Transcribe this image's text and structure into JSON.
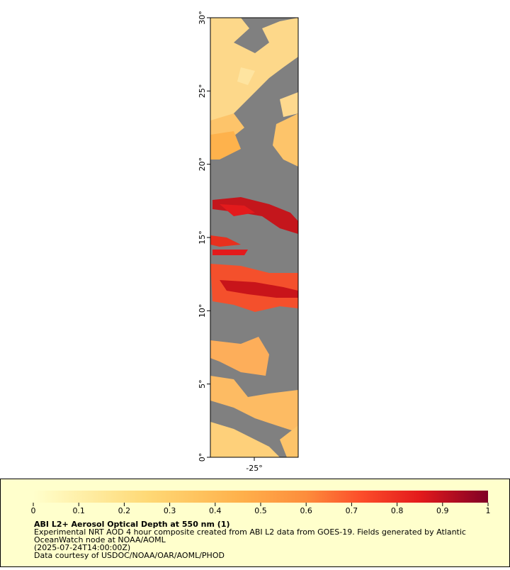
{
  "map": {
    "xlim": [
      -28,
      -22
    ],
    "ylim": [
      0,
      30
    ],
    "xticks": [
      {
        "value": -25,
        "label": "-25°"
      }
    ],
    "yticks": [
      {
        "value": 0,
        "label": "0°"
      },
      {
        "value": 5,
        "label": "5°"
      },
      {
        "value": 10,
        "label": "10°"
      },
      {
        "value": 15,
        "label": "15°"
      },
      {
        "value": 20,
        "label": "20°"
      },
      {
        "value": 25,
        "label": "25°"
      },
      {
        "value": 30,
        "label": "30°"
      }
    ]
  },
  "legend": {
    "clim": [
      0,
      1
    ],
    "colorbar_ticks": [
      0,
      0.1,
      0.2,
      0.3,
      0.4,
      0.5,
      0.6,
      0.7,
      0.8,
      0.9,
      1
    ],
    "title": "ABI L2+ Aerosol Optical Depth at 550 nm (1)",
    "lines": [
      "Experimental NRT AOD 4 hour composite created from ABI L2 data from GOES-19. Fields generated by Atlantic",
      "OceanWatch node at NOAA/AOML",
      "(2025-07-24T14:00:00Z)",
      "Data courtesy of USDOC/NOAA/OAR/AOML/PHOD"
    ]
  }
}
